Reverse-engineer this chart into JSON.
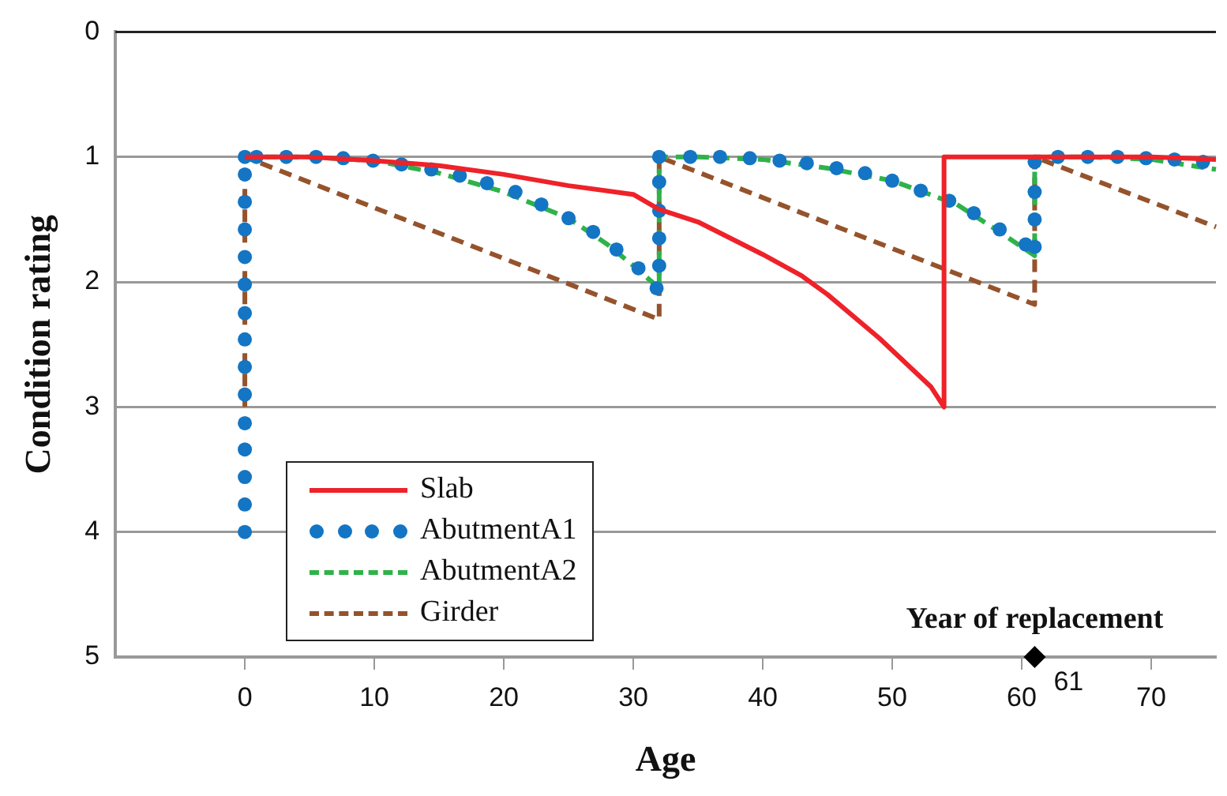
{
  "chart_data": {
    "type": "line",
    "xlabel": "Age",
    "ylabel": "Condition rating",
    "xlim": [
      -10,
      75
    ],
    "xticks": [
      0,
      10,
      20,
      30,
      40,
      50,
      60,
      70
    ],
    "ylim": [
      5,
      0
    ],
    "yticks": [
      0,
      1,
      2,
      3,
      4,
      5
    ],
    "grid": "y",
    "legend": "bottom left",
    "annotations": [
      {
        "text": "Year of replacement",
        "x": 61,
        "y": 5
      },
      {
        "text": "61",
        "x": 61,
        "y": 5
      }
    ],
    "series": [
      {
        "name": "Slab",
        "color": "#ee2229",
        "line_style": "solid",
        "marker": "none",
        "x": [
          0,
          5,
          10,
          15,
          20,
          25,
          30,
          32,
          35,
          40,
          43,
          45,
          49,
          53,
          54,
          54,
          55,
          60,
          70,
          75
        ],
        "values": [
          1,
          1,
          1.03,
          1.07,
          1.14,
          1.23,
          1.3,
          1.42,
          1.52,
          1.78,
          1.95,
          2.1,
          2.45,
          2.84,
          3,
          1,
          1,
          1,
          1,
          1.02
        ]
      },
      {
        "name": "AbutmentA1",
        "type": "scatter",
        "color": "#1375c4",
        "marker": "circle",
        "x": [
          0,
          0,
          0,
          0,
          0,
          0,
          0,
          0,
          0,
          0,
          0,
          0,
          0,
          0,
          0,
          0.9,
          3.2,
          5.5,
          7.6,
          9.9,
          12.1,
          14.4,
          16.6,
          18.7,
          20.9,
          22.9,
          25,
          26.9,
          28.7,
          30.4,
          31.8,
          32,
          32,
          32,
          32,
          32,
          34.4,
          36.7,
          39,
          41.3,
          43.4,
          45.7,
          47.9,
          50,
          52.2,
          54.4,
          56.3,
          58.3,
          60.3,
          61,
          61,
          61,
          61,
          62.8,
          65.1,
          67.4,
          69.6,
          71.8,
          74
        ],
        "values": [
          4,
          3.78,
          3.56,
          3.34,
          3.13,
          2.9,
          2.68,
          2.46,
          2.25,
          2.02,
          1.8,
          1.58,
          1.36,
          1.14,
          1,
          1,
          1,
          1,
          1.01,
          1.03,
          1.06,
          1.1,
          1.15,
          1.21,
          1.28,
          1.38,
          1.49,
          1.6,
          1.74,
          1.89,
          2.05,
          1.87,
          1.65,
          1.43,
          1.2,
          1,
          1,
          1,
          1.01,
          1.03,
          1.05,
          1.09,
          1.13,
          1.19,
          1.27,
          1.35,
          1.45,
          1.58,
          1.7,
          1.72,
          1.5,
          1.28,
          1.04,
          1,
          1,
          1,
          1.01,
          1.02,
          1.04
        ]
      },
      {
        "name": "AbutmentA2",
        "color": "#2fb24a",
        "line_style": "dashed",
        "marker": "none",
        "x": [
          0,
          5,
          10,
          15,
          20,
          25,
          28,
          30,
          32,
          32,
          35,
          40,
          45,
          50,
          55,
          58,
          60,
          61,
          61,
          65,
          70,
          75
        ],
        "values": [
          1,
          1,
          1.03,
          1.13,
          1.28,
          1.49,
          1.7,
          1.87,
          2.05,
          1,
          1,
          1.02,
          1.09,
          1.19,
          1.38,
          1.58,
          1.72,
          1.79,
          1,
          1,
          1.02,
          1.1
        ]
      },
      {
        "name": "Girder",
        "color": "#95532c",
        "line_style": "dashed",
        "marker": "none",
        "x": [
          0,
          0,
          32,
          32,
          61,
          61,
          75
        ],
        "values": [
          3,
          1,
          2.3,
          1,
          2.18,
          1,
          1.56
        ]
      },
      {
        "type": "scatter",
        "color": "#000000",
        "marker": "diamond",
        "x": [
          61
        ],
        "values": [
          5
        ]
      }
    ]
  }
}
